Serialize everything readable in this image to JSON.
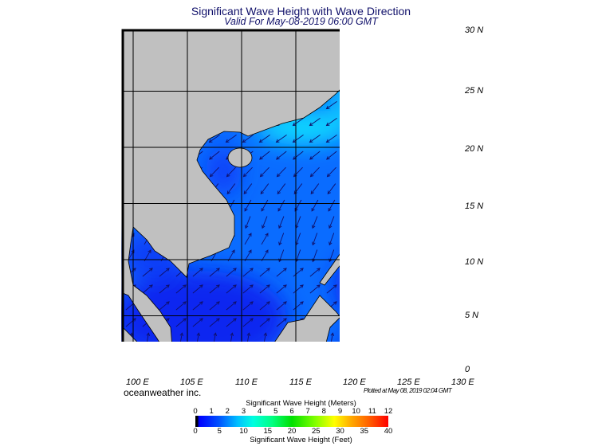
{
  "header": {
    "title": "Significant Wave Height with Wave Direction",
    "subtitle": "Valid For May-08-2019 06:00 GMT"
  },
  "map": {
    "lon_range": [
      100,
      130
    ],
    "lat_range": [
      0,
      30
    ],
    "lat_labels": [
      "30 N",
      "25 N",
      "20 N",
      "15 N",
      "10 N",
      "5 N",
      "0"
    ],
    "lon_labels": [
      "100 E",
      "105 E",
      "110 E",
      "115 E",
      "120 E",
      "125 E",
      "130 E"
    ],
    "colors": {
      "land": "#c0c0c0",
      "ocean_low": "#0a28f0",
      "ocean_mid": "#0a6cff",
      "ocean_high": "#10d8ff",
      "arrow": "#10106a"
    }
  },
  "footer": {
    "credit": "oceanweather inc.",
    "plotted": "Plotted at May 08, 2019 02:04 GMT"
  },
  "legend": {
    "meters_title": "Significant Wave Height (Meters)",
    "meters_ticks": [
      "0",
      "1",
      "2",
      "3",
      "4",
      "5",
      "6",
      "7",
      "8",
      "9",
      "10",
      "11",
      "12"
    ],
    "feet_title": "Significant Wave Height (Feet)",
    "feet_ticks": [
      "0",
      "5",
      "10",
      "15",
      "20",
      "25",
      "30",
      "35",
      "40"
    ]
  }
}
